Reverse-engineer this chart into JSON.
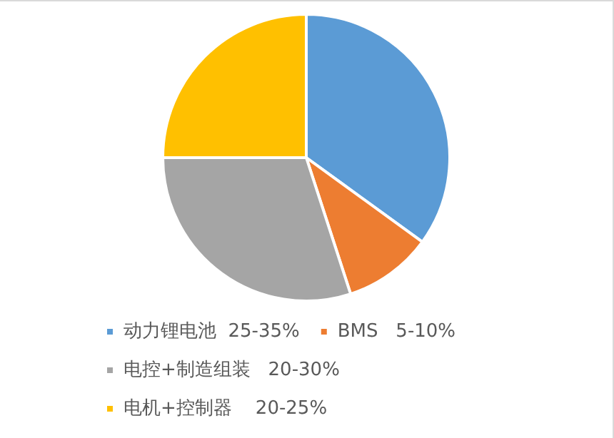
{
  "chart_data": {
    "type": "pie",
    "categories": [
      "动力锂电池  25-35%",
      "BMS   5-10%",
      "电控+制造组装   20-30%",
      "电机+控制器    20-25%"
    ],
    "values": [
      35,
      10,
      30,
      25
    ],
    "colors": [
      "#5b9bd5",
      "#ed7d31",
      "#a5a5a5",
      "#ffc000"
    ],
    "legend": "bottom"
  }
}
